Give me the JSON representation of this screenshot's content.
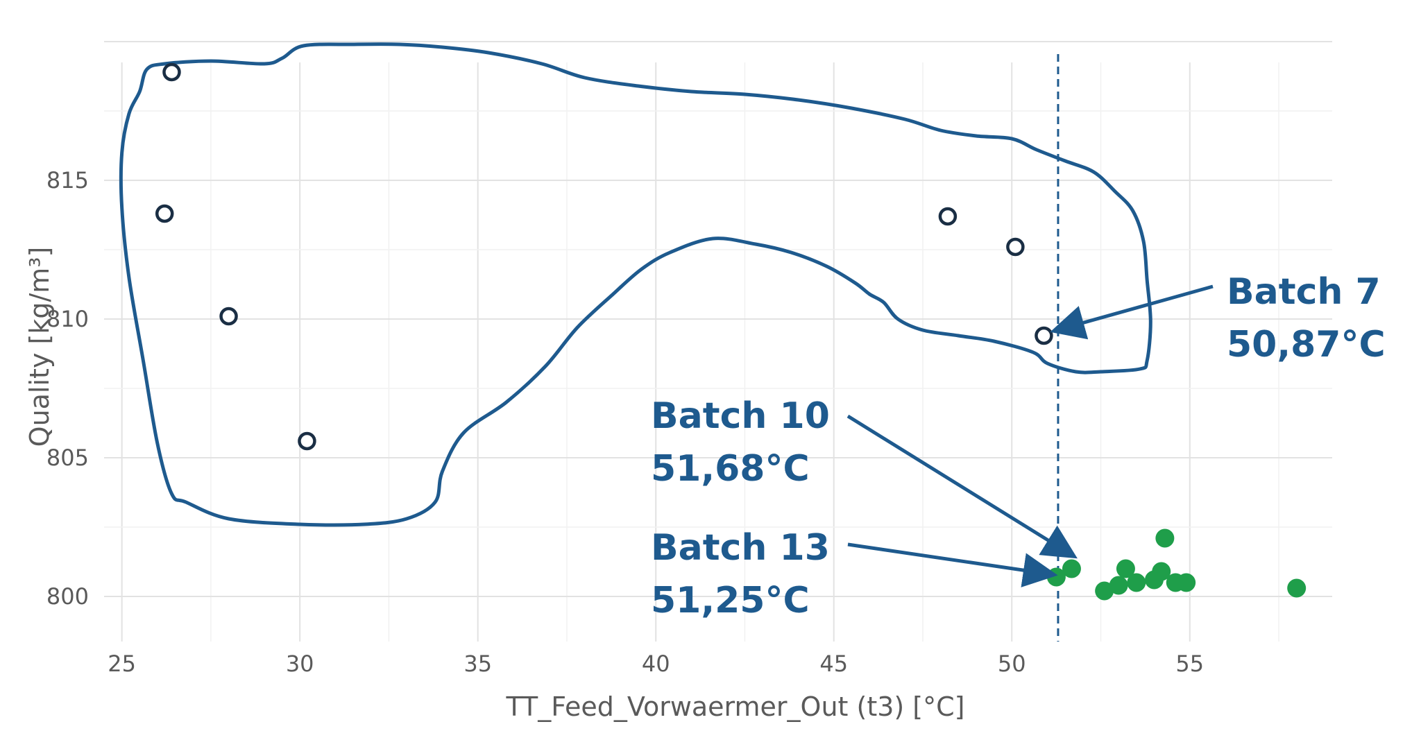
{
  "chart_data": {
    "type": "scatter",
    "xlabel": "TT_Feed_Vorwaermer_Out (t3) [°C]",
    "ylabel": "Quality [kg/m³]",
    "xlim": [
      24.5,
      59
    ],
    "ylim": [
      799,
      820
    ],
    "x_ticks": [
      25,
      30,
      35,
      40,
      45,
      50,
      55
    ],
    "y_ticks": [
      800,
      805,
      810,
      815
    ],
    "grid": true,
    "series": [
      {
        "marker": "hollow-circle",
        "color": "#1a2e44",
        "points": [
          {
            "x": 26.4,
            "y": 818.9
          },
          {
            "x": 26.2,
            "y": 813.8
          },
          {
            "x": 28.0,
            "y": 810.1
          },
          {
            "x": 30.2,
            "y": 805.6
          },
          {
            "x": 48.2,
            "y": 813.7
          },
          {
            "x": 50.1,
            "y": 812.6
          },
          {
            "x": 50.9,
            "y": 809.4
          }
        ]
      },
      {
        "marker": "filled-circle",
        "color": "#1f9e4a",
        "points": [
          {
            "x": 51.25,
            "y": 800.7
          },
          {
            "x": 51.68,
            "y": 801.0
          },
          {
            "x": 52.6,
            "y": 800.2
          },
          {
            "x": 53.0,
            "y": 800.4
          },
          {
            "x": 53.2,
            "y": 801.0
          },
          {
            "x": 53.5,
            "y": 800.5
          },
          {
            "x": 54.0,
            "y": 800.6
          },
          {
            "x": 54.2,
            "y": 800.9
          },
          {
            "x": 54.3,
            "y": 802.1
          },
          {
            "x": 54.6,
            "y": 800.5
          },
          {
            "x": 54.9,
            "y": 800.5
          },
          {
            "x": 58.0,
            "y": 800.3
          }
        ]
      }
    ],
    "boundary_color": "#1e5a8e",
    "boundary": [
      [
        25.5,
        818.2
      ],
      [
        25.7,
        819.0
      ],
      [
        26.2,
        819.2
      ],
      [
        27.5,
        819.3
      ],
      [
        29.0,
        819.2
      ],
      [
        29.5,
        819.4
      ],
      [
        30.1,
        819.85
      ],
      [
        31.5,
        819.9
      ],
      [
        32.8,
        819.9
      ],
      [
        34.0,
        819.8
      ],
      [
        35.3,
        819.6
      ],
      [
        36.8,
        819.2
      ],
      [
        38.0,
        818.7
      ],
      [
        39.5,
        818.4
      ],
      [
        41.0,
        818.2
      ],
      [
        42.5,
        818.1
      ],
      [
        44.0,
        817.9
      ],
      [
        45.5,
        817.6
      ],
      [
        47.0,
        817.2
      ],
      [
        48.0,
        816.8
      ],
      [
        49.0,
        816.6
      ],
      [
        50.0,
        816.5
      ],
      [
        50.7,
        816.1
      ],
      [
        51.5,
        815.7
      ],
      [
        52.3,
        815.3
      ],
      [
        52.9,
        814.6
      ],
      [
        53.4,
        813.9
      ],
      [
        53.7,
        812.8
      ],
      [
        53.8,
        811.4
      ],
      [
        53.9,
        809.9
      ],
      [
        53.8,
        808.5
      ],
      [
        53.6,
        808.2
      ],
      [
        52.5,
        808.1
      ],
      [
        51.8,
        808.1
      ],
      [
        51.0,
        808.4
      ],
      [
        50.6,
        808.8
      ],
      [
        49.5,
        809.2
      ],
      [
        48.5,
        809.4
      ],
      [
        47.5,
        809.6
      ],
      [
        46.8,
        810.0
      ],
      [
        46.4,
        810.6
      ],
      [
        46.0,
        810.9
      ],
      [
        45.6,
        811.3
      ],
      [
        44.8,
        811.9
      ],
      [
        43.8,
        812.4
      ],
      [
        42.8,
        812.7
      ],
      [
        41.6,
        812.9
      ],
      [
        40.4,
        812.4
      ],
      [
        39.6,
        811.8
      ],
      [
        38.8,
        810.9
      ],
      [
        37.8,
        809.7
      ],
      [
        36.9,
        808.3
      ],
      [
        35.8,
        807.0
      ],
      [
        34.6,
        805.9
      ],
      [
        34.0,
        804.5
      ],
      [
        33.8,
        803.4
      ],
      [
        33.0,
        802.8
      ],
      [
        31.8,
        802.6
      ],
      [
        30.0,
        802.6
      ],
      [
        28.0,
        802.8
      ],
      [
        26.8,
        803.4
      ],
      [
        26.4,
        803.7
      ],
      [
        26.0,
        805.5
      ],
      [
        25.6,
        808.5
      ],
      [
        25.2,
        811.5
      ],
      [
        25.0,
        814.0
      ],
      [
        25.0,
        816.0
      ],
      [
        25.2,
        817.4
      ],
      [
        25.5,
        818.2
      ]
    ],
    "threshold_line": {
      "x": 51.3,
      "style": "dashed",
      "color": "#1e5a8e"
    },
    "annotations": [
      {
        "text1": "Batch 7",
        "text2": "50,87°C",
        "target": {
          "x": 50.95,
          "y": 809.6
        }
      },
      {
        "text1": "Batch 10",
        "text2": "51,68°C",
        "target": {
          "x": 51.68,
          "y": 801.5
        }
      },
      {
        "text1": "Batch 13",
        "text2": "51,25°C",
        "target": {
          "x": 51.1,
          "y": 800.8
        }
      }
    ]
  }
}
